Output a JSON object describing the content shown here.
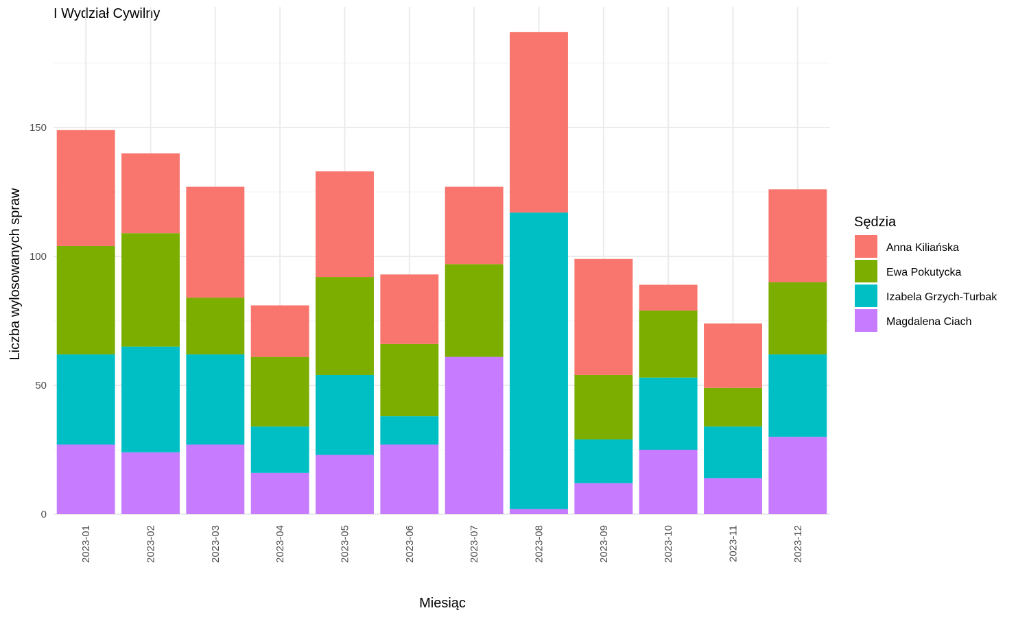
{
  "chart_data": {
    "type": "bar",
    "stacked": true,
    "title": "I Wydział Cywilny",
    "xlabel": "Miesiąc",
    "ylabel": "Liczba wylosowanych spraw",
    "ylim": [
      0,
      190
    ],
    "yticks": [
      0,
      50,
      100,
      150
    ],
    "grid": true,
    "legend_position": "right",
    "legend_title": "Sędzia",
    "categories": [
      "2023-01",
      "2023-02",
      "2023-03",
      "2023-04",
      "2023-05",
      "2023-06",
      "2023-07",
      "2023-08",
      "2023-09",
      "2023-10",
      "2023-11",
      "2023-12"
    ],
    "series": [
      {
        "name": "Magdalena Ciach",
        "color": "#c77cff",
        "values": [
          27,
          24,
          27,
          16,
          23,
          27,
          61,
          2,
          12,
          25,
          14,
          30
        ]
      },
      {
        "name": "Izabela Grzych-Turbak",
        "color": "#00bfc4",
        "values": [
          35,
          41,
          35,
          18,
          31,
          11,
          0,
          115,
          17,
          28,
          20,
          32
        ]
      },
      {
        "name": "Ewa Pokutycka",
        "color": "#7cae00",
        "values": [
          42,
          44,
          22,
          27,
          38,
          28,
          36,
          0,
          25,
          26,
          15,
          28
        ]
      },
      {
        "name": "Anna Kiliańska",
        "color": "#f8766d",
        "values": [
          45,
          31,
          43,
          20,
          41,
          27,
          30,
          70,
          45,
          10,
          25,
          36
        ]
      }
    ],
    "legend_order": [
      "Anna Kiliańska",
      "Ewa Pokutycka",
      "Izabela Grzych-Turbak",
      "Magdalena Ciach"
    ]
  }
}
